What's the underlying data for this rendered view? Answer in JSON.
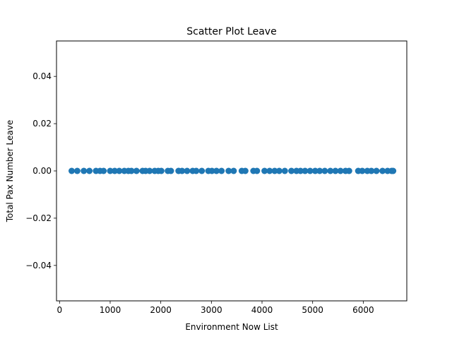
{
  "chart_data": {
    "type": "scatter",
    "title": "Scatter Plot Leave",
    "xlabel": "Environment Now List",
    "ylabel": "Total Pax Number Leave",
    "xlim": [
      -60,
      6860
    ],
    "ylim": [
      -0.055,
      0.055
    ],
    "xticks": [
      0,
      1000,
      2000,
      3000,
      4000,
      5000,
      6000
    ],
    "yticks": [
      -0.04,
      -0.02,
      0.0,
      0.02,
      0.04
    ],
    "xtick_labels": [
      "0",
      "1000",
      "2000",
      "3000",
      "4000",
      "5000",
      "6000"
    ],
    "ytick_labels": [
      "−0.04",
      "−0.02",
      "0.00",
      "0.02",
      "0.04"
    ],
    "grid": false,
    "marker_color": "#1f77b4",
    "series": [
      {
        "x": [
          240,
          350,
          480,
          590,
          720,
          800,
          870,
          1000,
          1090,
          1180,
          1280,
          1360,
          1420,
          1520,
          1640,
          1700,
          1780,
          1880,
          1950,
          2010,
          2140,
          2200,
          2350,
          2420,
          2520,
          2630,
          2700,
          2810,
          2940,
          3010,
          3100,
          3200,
          3340,
          3440,
          3600,
          3670,
          3830,
          3900,
          4050,
          4150,
          4250,
          4340,
          4450,
          4580,
          4680,
          4760,
          4850,
          4950,
          5050,
          5140,
          5240,
          5350,
          5450,
          5550,
          5650,
          5720,
          5900,
          5980,
          6080,
          6160,
          6260,
          6380,
          6480,
          6560,
          6590
        ],
        "y": [
          0,
          0,
          0,
          0,
          0,
          0,
          0,
          0,
          0,
          0,
          0,
          0,
          0,
          0,
          0,
          0,
          0,
          0,
          0,
          0,
          0,
          0,
          0,
          0,
          0,
          0,
          0,
          0,
          0,
          0,
          0,
          0,
          0,
          0,
          0,
          0,
          0,
          0,
          0,
          0,
          0,
          0,
          0,
          0,
          0,
          0,
          0,
          0,
          0,
          0,
          0,
          0,
          0,
          0,
          0,
          0,
          0,
          0,
          0,
          0,
          0,
          0,
          0,
          0,
          0
        ]
      }
    ]
  }
}
